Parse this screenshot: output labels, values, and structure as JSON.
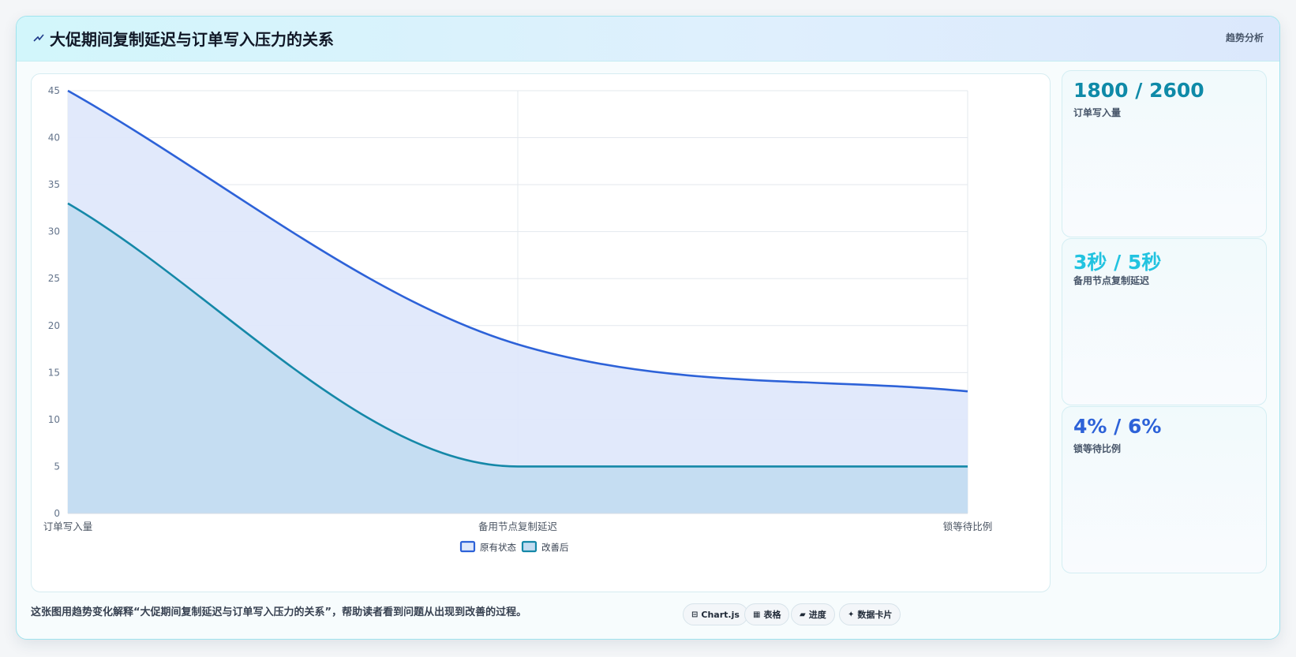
{
  "header": {
    "icon": "line-trend-icon",
    "title": "大促期间复制延迟与订单写入压力的关系",
    "tag": "趋势分析"
  },
  "chart_data": {
    "type": "area",
    "categories": [
      "订单写入量",
      "备用节点复制延迟",
      "锁等待比例"
    ],
    "series": [
      {
        "name": "原有状态",
        "values": [
          45,
          18,
          13
        ],
        "color": "#2d62d8",
        "fill": "#dfe8fb"
      },
      {
        "name": "改善后",
        "values": [
          33,
          5,
          5
        ],
        "color": "#1588a8",
        "fill": "#c3dcf1"
      }
    ],
    "ylim": [
      0,
      45
    ],
    "yticks": [
      0,
      5,
      10,
      15,
      20,
      25,
      30,
      35,
      40,
      45
    ],
    "grid": true,
    "legend": "bottom-center"
  },
  "stats": [
    {
      "value": "1800 / 2600",
      "label": "订单写入量",
      "color": "#0f8aa8"
    },
    {
      "value": "3秒 / 5秒",
      "label": "备用节点复制延迟",
      "color": "#22c3e0"
    },
    {
      "value": "4% / 6%",
      "label": "锁等待比例",
      "color": "#2d62d8"
    }
  ],
  "footer": {
    "text": "这张图用趋势变化解释“大促期间复制延迟与订单写入压力的关系”，帮助读者看到问题从出现到改善的过程。",
    "chips": [
      {
        "icon": "chart-icon",
        "glyph": "⊟",
        "label": "Chart.js"
      },
      {
        "icon": "table-icon",
        "glyph": "▦",
        "label": "表格"
      },
      {
        "icon": "progress-icon",
        "glyph": "▰",
        "label": "进度"
      },
      {
        "icon": "data-card-icon",
        "glyph": "✦",
        "label": "数据卡片"
      }
    ]
  }
}
